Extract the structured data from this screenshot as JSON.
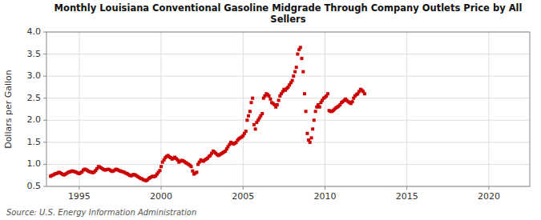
{
  "chart_data": {
    "type": "scatter",
    "title": "Monthly Louisiana Conventional Gasoline Midgrade Through Company Outlets Price by All\nSellers",
    "y_label": "Dollars per Gallon",
    "annotations": [
      "Source: U.S. Energy Information Administration"
    ],
    "color": "#cc0000",
    "marker": "square",
    "grid": true,
    "xlim": [
      1993.0,
      2022.5
    ],
    "ylim": [
      0.5,
      4.0
    ],
    "yticks": [
      0.5,
      {
        "value": 1.0,
        "label": "1.0"
      },
      1.5,
      {
        "value": 2.0,
        "label": "2.0"
      },
      2.5,
      {
        "value": 3.0,
        "label": "3.0"
      },
      3.5,
      {
        "value": 4.0,
        "label": "4.0"
      }
    ],
    "xticks": [
      1995,
      2000,
      2005,
      2010,
      2015,
      2020
    ],
    "x": [
      1993.25,
      1993.33,
      1993.42,
      1993.5,
      1993.58,
      1993.67,
      1993.75,
      1993.83,
      1993.92,
      1994.0,
      1994.08,
      1994.17,
      1994.25,
      1994.33,
      1994.42,
      1994.5,
      1994.58,
      1994.67,
      1994.75,
      1994.83,
      1994.92,
      1995.0,
      1995.08,
      1995.17,
      1995.25,
      1995.33,
      1995.42,
      1995.5,
      1995.58,
      1995.67,
      1995.75,
      1995.83,
      1995.92,
      1996.0,
      1996.08,
      1996.17,
      1996.25,
      1996.33,
      1996.42,
      1996.5,
      1996.58,
      1996.67,
      1996.75,
      1996.83,
      1996.92,
      1997.0,
      1997.08,
      1997.17,
      1997.25,
      1997.33,
      1997.42,
      1997.5,
      1997.58,
      1997.67,
      1997.75,
      1997.83,
      1997.92,
      1998.0,
      1998.08,
      1998.17,
      1998.25,
      1998.33,
      1998.42,
      1998.5,
      1998.58,
      1998.67,
      1998.75,
      1998.83,
      1998.92,
      1999.0,
      1999.08,
      1999.17,
      1999.25,
      1999.33,
      1999.42,
      1999.5,
      1999.58,
      1999.67,
      1999.75,
      1999.83,
      1999.92,
      2000.0,
      2000.08,
      2000.17,
      2000.25,
      2000.33,
      2000.42,
      2000.5,
      2000.58,
      2000.67,
      2000.75,
      2000.83,
      2000.92,
      2001.0,
      2001.08,
      2001.17,
      2001.25,
      2001.33,
      2001.42,
      2001.5,
      2001.58,
      2001.67,
      2001.75,
      2001.83,
      2001.92,
      2002.0,
      2002.08,
      2002.17,
      2002.25,
      2002.33,
      2002.42,
      2002.5,
      2002.58,
      2002.67,
      2002.75,
      2002.83,
      2002.92,
      2003.0,
      2003.08,
      2003.17,
      2003.25,
      2003.33,
      2003.42,
      2003.5,
      2003.58,
      2003.67,
      2003.75,
      2003.83,
      2003.92,
      2004.0,
      2004.08,
      2004.17,
      2004.25,
      2004.33,
      2004.42,
      2004.5,
      2004.58,
      2004.67,
      2004.75,
      2004.83,
      2004.92,
      2005.0,
      2005.08,
      2005.17,
      2005.25,
      2005.33,
      2005.42,
      2005.5,
      2005.58,
      2005.67,
      2005.75,
      2005.83,
      2005.92,
      2006.0,
      2006.08,
      2006.17,
      2006.25,
      2006.33,
      2006.42,
      2006.5,
      2006.58,
      2006.67,
      2006.75,
      2006.83,
      2006.92,
      2007.0,
      2007.08,
      2007.17,
      2007.25,
      2007.33,
      2007.42,
      2007.5,
      2007.58,
      2007.67,
      2007.75,
      2007.83,
      2007.92,
      2008.0,
      2008.08,
      2008.17,
      2008.25,
      2008.33,
      2008.42,
      2008.5,
      2008.58,
      2008.67,
      2008.75,
      2008.83,
      2008.92,
      2009.0,
      2009.08,
      2009.17,
      2009.25,
      2009.33,
      2009.42,
      2009.5,
      2009.58,
      2009.67,
      2009.75,
      2009.83,
      2009.92,
      2010.0,
      2010.08,
      2010.17,
      2010.25,
      2010.33,
      2010.42,
      2010.5,
      2010.58,
      2010.67,
      2010.75,
      2010.83,
      2010.92,
      2011.0,
      2011.08,
      2011.17,
      2011.25,
      2011.33,
      2011.42,
      2011.5,
      2011.58,
      2011.67,
      2011.75,
      2011.83,
      2011.92,
      2012.0,
      2012.08,
      2012.17,
      2012.25,
      2012.33,
      2012.42
    ],
    "values": [
      0.73,
      0.75,
      0.76,
      0.78,
      0.79,
      0.8,
      0.82,
      0.81,
      0.79,
      0.77,
      0.76,
      0.78,
      0.8,
      0.82,
      0.83,
      0.84,
      0.85,
      0.84,
      0.83,
      0.82,
      0.8,
      0.79,
      0.81,
      0.83,
      0.87,
      0.89,
      0.88,
      0.86,
      0.84,
      0.83,
      0.82,
      0.81,
      0.83,
      0.86,
      0.9,
      0.95,
      0.94,
      0.92,
      0.9,
      0.88,
      0.87,
      0.88,
      0.89,
      0.88,
      0.86,
      0.84,
      0.85,
      0.87,
      0.89,
      0.88,
      0.86,
      0.85,
      0.84,
      0.83,
      0.82,
      0.8,
      0.79,
      0.77,
      0.75,
      0.74,
      0.76,
      0.77,
      0.76,
      0.74,
      0.72,
      0.7,
      0.68,
      0.67,
      0.65,
      0.64,
      0.63,
      0.65,
      0.68,
      0.7,
      0.72,
      0.73,
      0.72,
      0.74,
      0.78,
      0.82,
      0.86,
      0.95,
      1.05,
      1.1,
      1.15,
      1.18,
      1.2,
      1.17,
      1.15,
      1.12,
      1.14,
      1.16,
      1.13,
      1.1,
      1.05,
      1.07,
      1.09,
      1.08,
      1.06,
      1.04,
      1.02,
      1.0,
      0.98,
      0.95,
      0.85,
      0.78,
      0.8,
      0.82,
      1.0,
      1.05,
      1.1,
      1.08,
      1.07,
      1.1,
      1.12,
      1.14,
      1.18,
      1.2,
      1.25,
      1.3,
      1.28,
      1.25,
      1.22,
      1.2,
      1.22,
      1.24,
      1.26,
      1.28,
      1.3,
      1.35,
      1.4,
      1.45,
      1.5,
      1.48,
      1.46,
      1.48,
      1.5,
      1.55,
      1.58,
      1.6,
      1.62,
      1.65,
      1.7,
      1.75,
      2.0,
      2.1,
      2.2,
      2.4,
      2.5,
      1.9,
      1.8,
      1.95,
      2.0,
      2.05,
      2.1,
      2.15,
      2.5,
      2.55,
      2.6,
      2.58,
      2.55,
      2.48,
      2.4,
      2.38,
      2.35,
      2.3,
      2.35,
      2.45,
      2.55,
      2.6,
      2.65,
      2.7,
      2.68,
      2.72,
      2.75,
      2.8,
      2.85,
      2.9,
      3.0,
      3.1,
      3.2,
      3.5,
      3.6,
      3.65,
      3.4,
      3.1,
      2.6,
      2.2,
      1.7,
      1.55,
      1.5,
      1.6,
      1.8,
      2.0,
      2.2,
      2.3,
      2.35,
      2.3,
      2.4,
      2.45,
      2.5,
      2.52,
      2.55,
      2.6,
      2.22,
      2.2,
      2.2,
      2.22,
      2.25,
      2.28,
      2.3,
      2.32,
      2.35,
      2.4,
      2.42,
      2.45,
      2.48,
      2.45,
      2.42,
      2.4,
      2.38,
      2.42,
      2.5,
      2.55,
      2.58,
      2.6,
      2.65,
      2.7,
      2.68,
      2.65,
      2.6
    ]
  }
}
